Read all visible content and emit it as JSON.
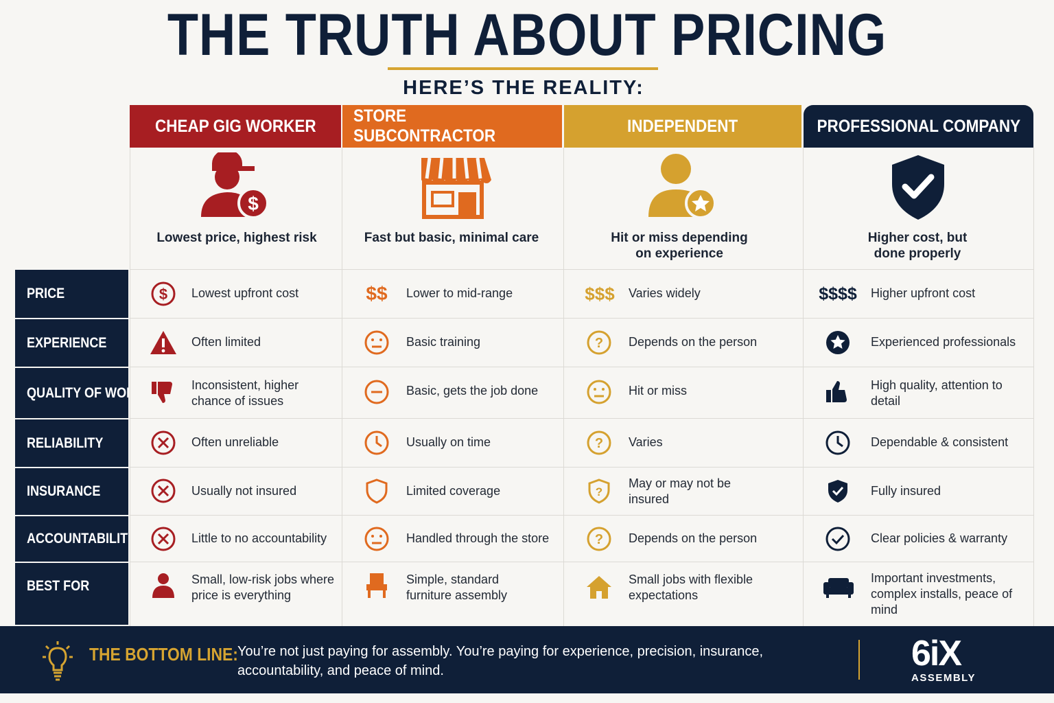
{
  "title": "THE TRUTH ABOUT PRICING",
  "subtitle": "HERE’S THE REALITY:",
  "colors": {
    "red": "#a71e22",
    "orange": "#e06a1f",
    "gold": "#d5a12f",
    "navy": "#0f1f38"
  },
  "columns": [
    {
      "name": "CHEAP GIG WORKER",
      "icon": "worker-dollar-icon",
      "tagline": "Lowest price, highest risk"
    },
    {
      "name": "STORE SUBCONTRACTOR",
      "icon": "storefront-icon",
      "tagline": "Fast but basic, minimal care"
    },
    {
      "name": "INDEPENDENT",
      "icon": "person-star-icon",
      "tagline": "Hit or miss depending on experience"
    },
    {
      "name": "PROFESSIONAL COMPANY",
      "icon": "shield-check-icon",
      "tagline": "Higher cost, but done properly"
    }
  ],
  "rows": [
    {
      "label": "PRICE",
      "cells": [
        {
          "icon": "dollar-circle-icon",
          "text": "Lowest upfront cost"
        },
        {
          "icon": "dollar-sign",
          "symbol": "$$",
          "text": "Lower to mid-range"
        },
        {
          "icon": "dollar-sign",
          "symbol": "$$$",
          "text": "Varies widely"
        },
        {
          "icon": "dollar-sign",
          "symbol": "$$$$",
          "text": "Higher upfront cost"
        }
      ]
    },
    {
      "label": "EXPERIENCE",
      "cells": [
        {
          "icon": "warning-icon",
          "text": "Often limited"
        },
        {
          "icon": "neutral-face-icon",
          "text": "Basic training"
        },
        {
          "icon": "question-icon",
          "text": "Depends on the person"
        },
        {
          "icon": "star-circle-icon",
          "text": "Experienced professionals"
        }
      ]
    },
    {
      "label": "QUALITY OF WORK",
      "cells": [
        {
          "icon": "thumbs-down-icon",
          "text": "Inconsistent, higher chance of issues"
        },
        {
          "icon": "minus-circle-icon",
          "text": "Basic, gets the job done"
        },
        {
          "icon": "neutral-face-icon",
          "text": "Hit or miss"
        },
        {
          "icon": "thumbs-up-icon",
          "text": "High quality, attention to detail"
        }
      ]
    },
    {
      "label": "RELIABILITY",
      "cells": [
        {
          "icon": "x-circle-icon",
          "text": "Often unreliable"
        },
        {
          "icon": "clock-icon",
          "text": "Usually on time"
        },
        {
          "icon": "question-icon",
          "text": "Varies"
        },
        {
          "icon": "clock-icon",
          "text": "Dependable & consistent"
        }
      ]
    },
    {
      "label": "INSURANCE",
      "cells": [
        {
          "icon": "x-circle-icon",
          "text": "Usually not insured"
        },
        {
          "icon": "shield-outline-icon",
          "text": "Limited coverage"
        },
        {
          "icon": "shield-question-icon",
          "text": "May or may not be insured"
        },
        {
          "icon": "shield-check-icon",
          "text": "Fully insured"
        }
      ]
    },
    {
      "label": "ACCOUNTABILITY",
      "cells": [
        {
          "icon": "x-circle-icon",
          "text": "Little to no accountability"
        },
        {
          "icon": "neutral-face-icon",
          "text": "Handled through the store"
        },
        {
          "icon": "question-icon",
          "text": "Depends on the person"
        },
        {
          "icon": "check-circle-icon",
          "text": "Clear policies & warranty"
        }
      ]
    },
    {
      "label": "BEST FOR",
      "cells": [
        {
          "icon": "person-icon",
          "text": "Small, low-risk jobs where price is everything"
        },
        {
          "icon": "chair-icon",
          "text": "Simple, standard furniture assembly"
        },
        {
          "icon": "house-icon",
          "text": "Small jobs with flexible expectations"
        },
        {
          "icon": "sofa-icon",
          "text": "Important investments, complex installs, peace of mind"
        }
      ]
    }
  ],
  "bottom_line": {
    "label": "THE BOTTOM LINE:",
    "text": "You’re not just paying for assembly. You’re paying for experience, precision, insurance, accountability, and peace of mind.",
    "icon": "lightbulb-icon"
  },
  "logo": {
    "main": "6iX",
    "sub": "ASSEMBLY"
  }
}
